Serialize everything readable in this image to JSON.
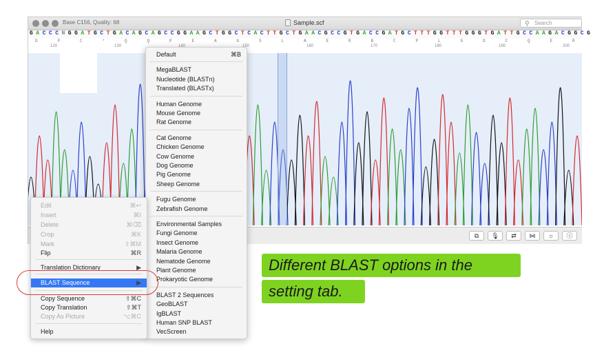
{
  "window": {
    "title_info": "Base C156, Quality: 68",
    "file_name": "Sample.scf",
    "search_placeholder": "Search"
  },
  "sequence": {
    "bases": [
      "G",
      "A",
      "C",
      "C",
      "C",
      "N",
      "G",
      "G",
      "A",
      "T",
      "G",
      "C",
      "T",
      "G",
      "A",
      "C",
      "A",
      "G",
      "C",
      "A",
      "G",
      "C",
      "C",
      "G",
      "G",
      "A",
      "A",
      "G",
      "C",
      "T",
      "G",
      "G",
      "C",
      "T",
      "C",
      "A",
      "C",
      "T",
      "T",
      "G",
      "C",
      "T",
      "G",
      "A",
      "A",
      "C",
      "G",
      "C",
      "C",
      "G",
      "T",
      "G",
      "A",
      "C",
      "C",
      "G",
      "A",
      "T",
      "G",
      "C",
      "T",
      "T",
      "T",
      "G",
      "G",
      "T",
      "T",
      "T",
      "G",
      "G",
      "G",
      "T",
      "G",
      "A",
      "T",
      "T",
      "G",
      "C",
      "C",
      "A",
      "A",
      "G",
      "A",
      "C",
      "G",
      "G",
      "C",
      "G"
    ],
    "amino_acids": [
      "D",
      "P",
      "C",
      "*",
      "Q",
      "Q",
      "P",
      "E",
      "A",
      "G",
      "S",
      "L",
      "A",
      "E",
      "R",
      "B",
      "C",
      "P",
      "L",
      "G",
      "D",
      "C",
      "Q",
      "E",
      "R"
    ],
    "positions": [
      "120",
      "130",
      "140",
      "150",
      "160",
      "170",
      "180",
      "190",
      "200"
    ],
    "base_colors": {
      "A": "#2e9e2e",
      "C": "#2b3fc9",
      "G": "#111111",
      "T": "#d42a2a",
      "N": "#888888"
    }
  },
  "toolbar_buttons": [
    {
      "name": "copy-icon",
      "glyph": "⧉"
    },
    {
      "name": "microphone-icon",
      "glyph": "🎙"
    },
    {
      "name": "swap-icon",
      "glyph": "⇄"
    },
    {
      "name": "bowtie-icon",
      "glyph": "⋈"
    },
    {
      "name": "brightness-icon",
      "glyph": "☼"
    },
    {
      "name": "info-icon",
      "glyph": "ⓘ"
    }
  ],
  "context_menu": {
    "items": [
      {
        "label": "Edit",
        "shortcut": "⌘↩",
        "disabled": true
      },
      {
        "label": "Insert",
        "shortcut": "⌘I",
        "disabled": true
      },
      {
        "label": "Delete",
        "shortcut": "⌘⌫",
        "disabled": true
      },
      {
        "label": "Crop",
        "shortcut": "⌘K",
        "disabled": true
      },
      {
        "label": "Mark",
        "shortcut": "⇧⌘M",
        "disabled": true
      },
      {
        "label": "Flip",
        "shortcut": "⌘R",
        "disabled": false
      },
      {
        "label": "Translation Dictionary",
        "shortcut": "▶",
        "disabled": false
      },
      {
        "label": "BLAST Sequence",
        "shortcut": "▶",
        "disabled": false,
        "selected": true
      },
      {
        "label": "Copy Sequence",
        "shortcut": "⇧⌘C",
        "disabled": false
      },
      {
        "label": "Copy Translation",
        "shortcut": "⇧⌘T",
        "disabled": false
      },
      {
        "label": "Copy As Picture",
        "shortcut": "⌥⌘C",
        "disabled": true
      },
      {
        "label": "Help",
        "shortcut": "",
        "disabled": false
      }
    ]
  },
  "blast_submenu": {
    "groups": [
      [
        {
          "label": "Default",
          "shortcut": "⌘B"
        }
      ],
      [
        {
          "label": "MegaBLAST"
        },
        {
          "label": "Nucleotide (BLASTn)"
        },
        {
          "label": "Translated (BLASTx)"
        }
      ],
      [
        {
          "label": "Human Genome"
        },
        {
          "label": "Mouse Genome"
        },
        {
          "label": "Rat Genome"
        }
      ],
      [
        {
          "label": "Cat Genome"
        },
        {
          "label": "Chicken Genome"
        },
        {
          "label": "Cow Genome"
        },
        {
          "label": "Dog Genome"
        },
        {
          "label": "Pig Genome"
        },
        {
          "label": "Sheep Genome"
        }
      ],
      [
        {
          "label": "Fugu Genome"
        },
        {
          "label": "Zebrafish Genome"
        }
      ],
      [
        {
          "label": "Environmental Samples"
        },
        {
          "label": "Fungi Genome"
        },
        {
          "label": "Insect Genome"
        },
        {
          "label": "Malaria Genome"
        },
        {
          "label": "Nematode Genome"
        },
        {
          "label": "Plant Genome"
        },
        {
          "label": "Prokaryotic Genome"
        }
      ],
      [
        {
          "label": "BLAST 2 Sequences"
        },
        {
          "label": "GeoBLAST"
        },
        {
          "label": "IgBLAST"
        },
        {
          "label": "Human SNP BLAST"
        },
        {
          "label": "VecScreen"
        }
      ]
    ]
  },
  "callout": {
    "line1": "Different BLAST options in the",
    "line2": "setting tab.",
    "color": "#7ed321"
  },
  "highlight_color": "#d93a3a",
  "selection_color": "#3478f6"
}
